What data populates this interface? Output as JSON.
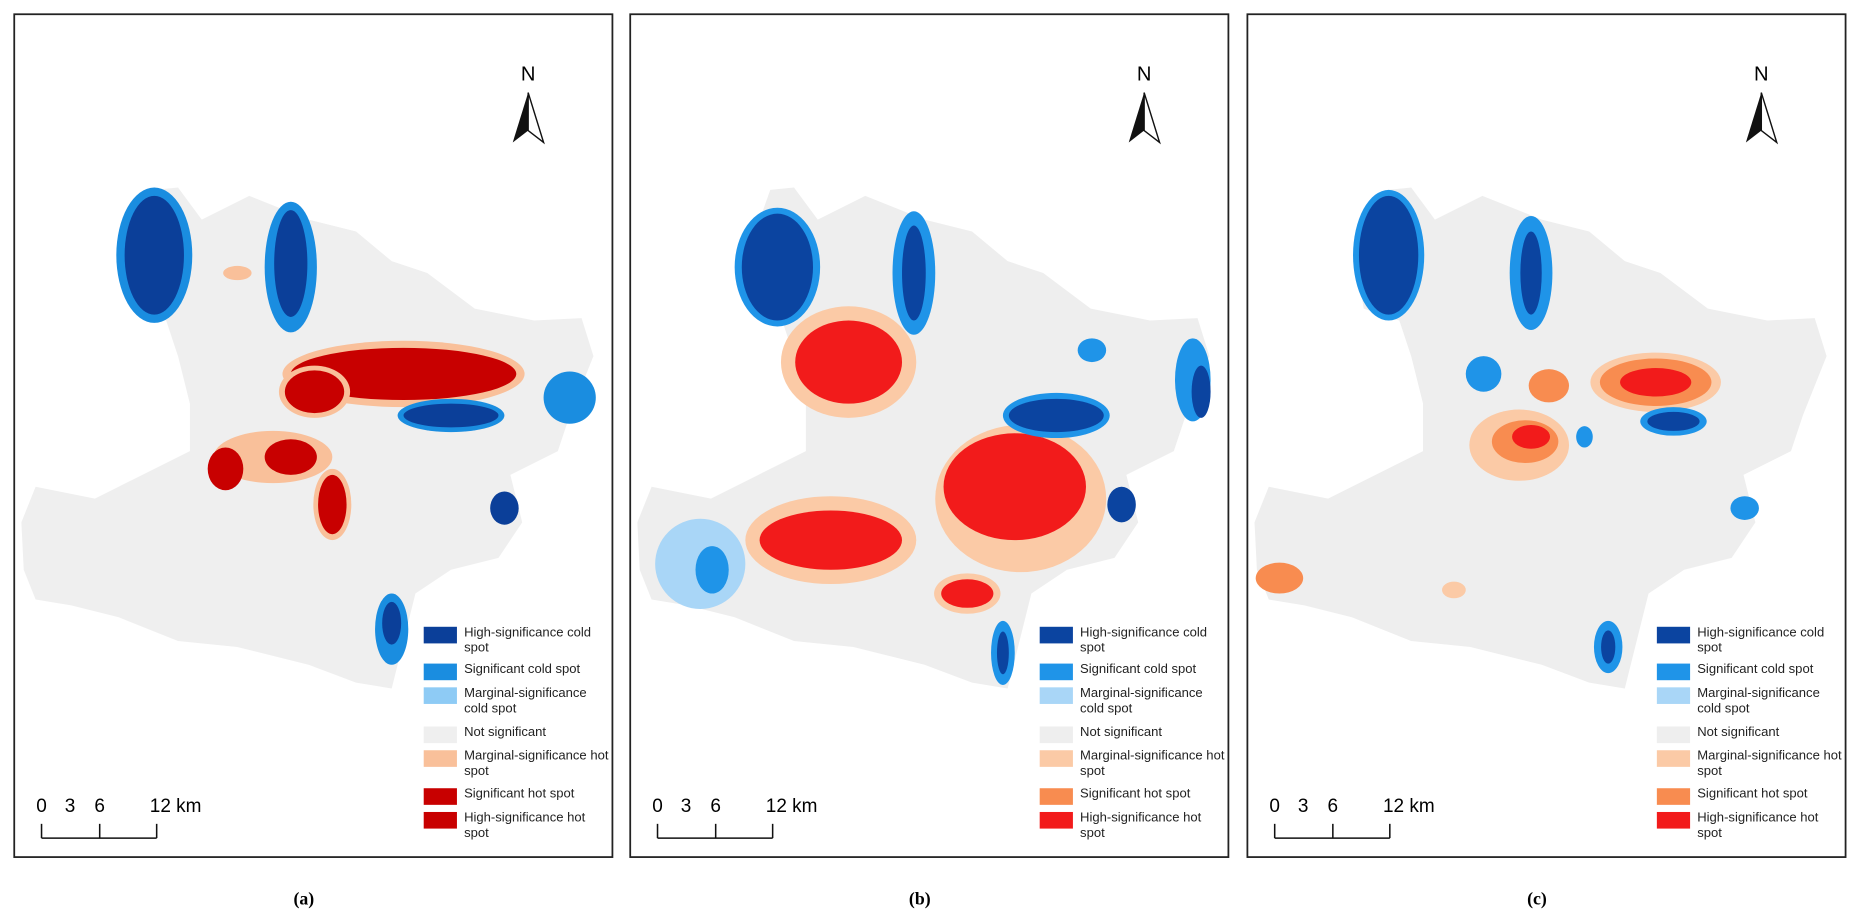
{
  "panels": [
    {
      "caption": "(a)",
      "north": "N",
      "scale_labels": [
        "0",
        "3",
        "6",
        "12 km"
      ],
      "legend": [
        {
          "label": "High-significance cold spot",
          "color": "#0b3f99"
        },
        {
          "label": "Significant cold spot",
          "color": "#1a8de0"
        },
        {
          "label": "Marginal-significance cold spot",
          "color": "#8ecbf5"
        },
        {
          "label": "Not significant",
          "color": "#efefef"
        },
        {
          "label": "Marginal-significance hot spot",
          "color": "#f9c09a"
        },
        {
          "label": "Significant hot spot",
          "color": "#c80000"
        },
        {
          "label": "High-significance hot spot",
          "color": "#c80000"
        }
      ]
    },
    {
      "caption": "(b)",
      "north": "N",
      "scale_labels": [
        "0",
        "3",
        "6",
        "12 km"
      ],
      "legend": [
        {
          "label": "High-significance cold spot",
          "color": "#0b44a0"
        },
        {
          "label": "Significant cold spot",
          "color": "#1f94e8"
        },
        {
          "label": "Marginal-significance cold spot",
          "color": "#a9d6f7"
        },
        {
          "label": "Not significant",
          "color": "#eeeeee"
        },
        {
          "label": "Marginal-significance hot spot",
          "color": "#fbcaa6"
        },
        {
          "label": "Significant hot spot",
          "color": "#f88c50"
        },
        {
          "label": "High-significance hot spot",
          "color": "#f21b1b"
        }
      ]
    },
    {
      "caption": "(c)",
      "north": "N",
      "scale_labels": [
        "0",
        "3",
        "6",
        "12 km"
      ],
      "legend": [
        {
          "label": "High-significance cold spot",
          "color": "#0b44a0"
        },
        {
          "label": "Significant cold spot",
          "color": "#1f94e8"
        },
        {
          "label": "Marginal-significance cold spot",
          "color": "#a9d6f7"
        },
        {
          "label": "Not significant",
          "color": "#eeeeee"
        },
        {
          "label": "Marginal-significance hot spot",
          "color": "#fbcaa6"
        },
        {
          "label": "Significant hot spot",
          "color": "#f88c50"
        },
        {
          "label": "High-significance hot spot",
          "color": "#f21b1b"
        }
      ]
    }
  ]
}
